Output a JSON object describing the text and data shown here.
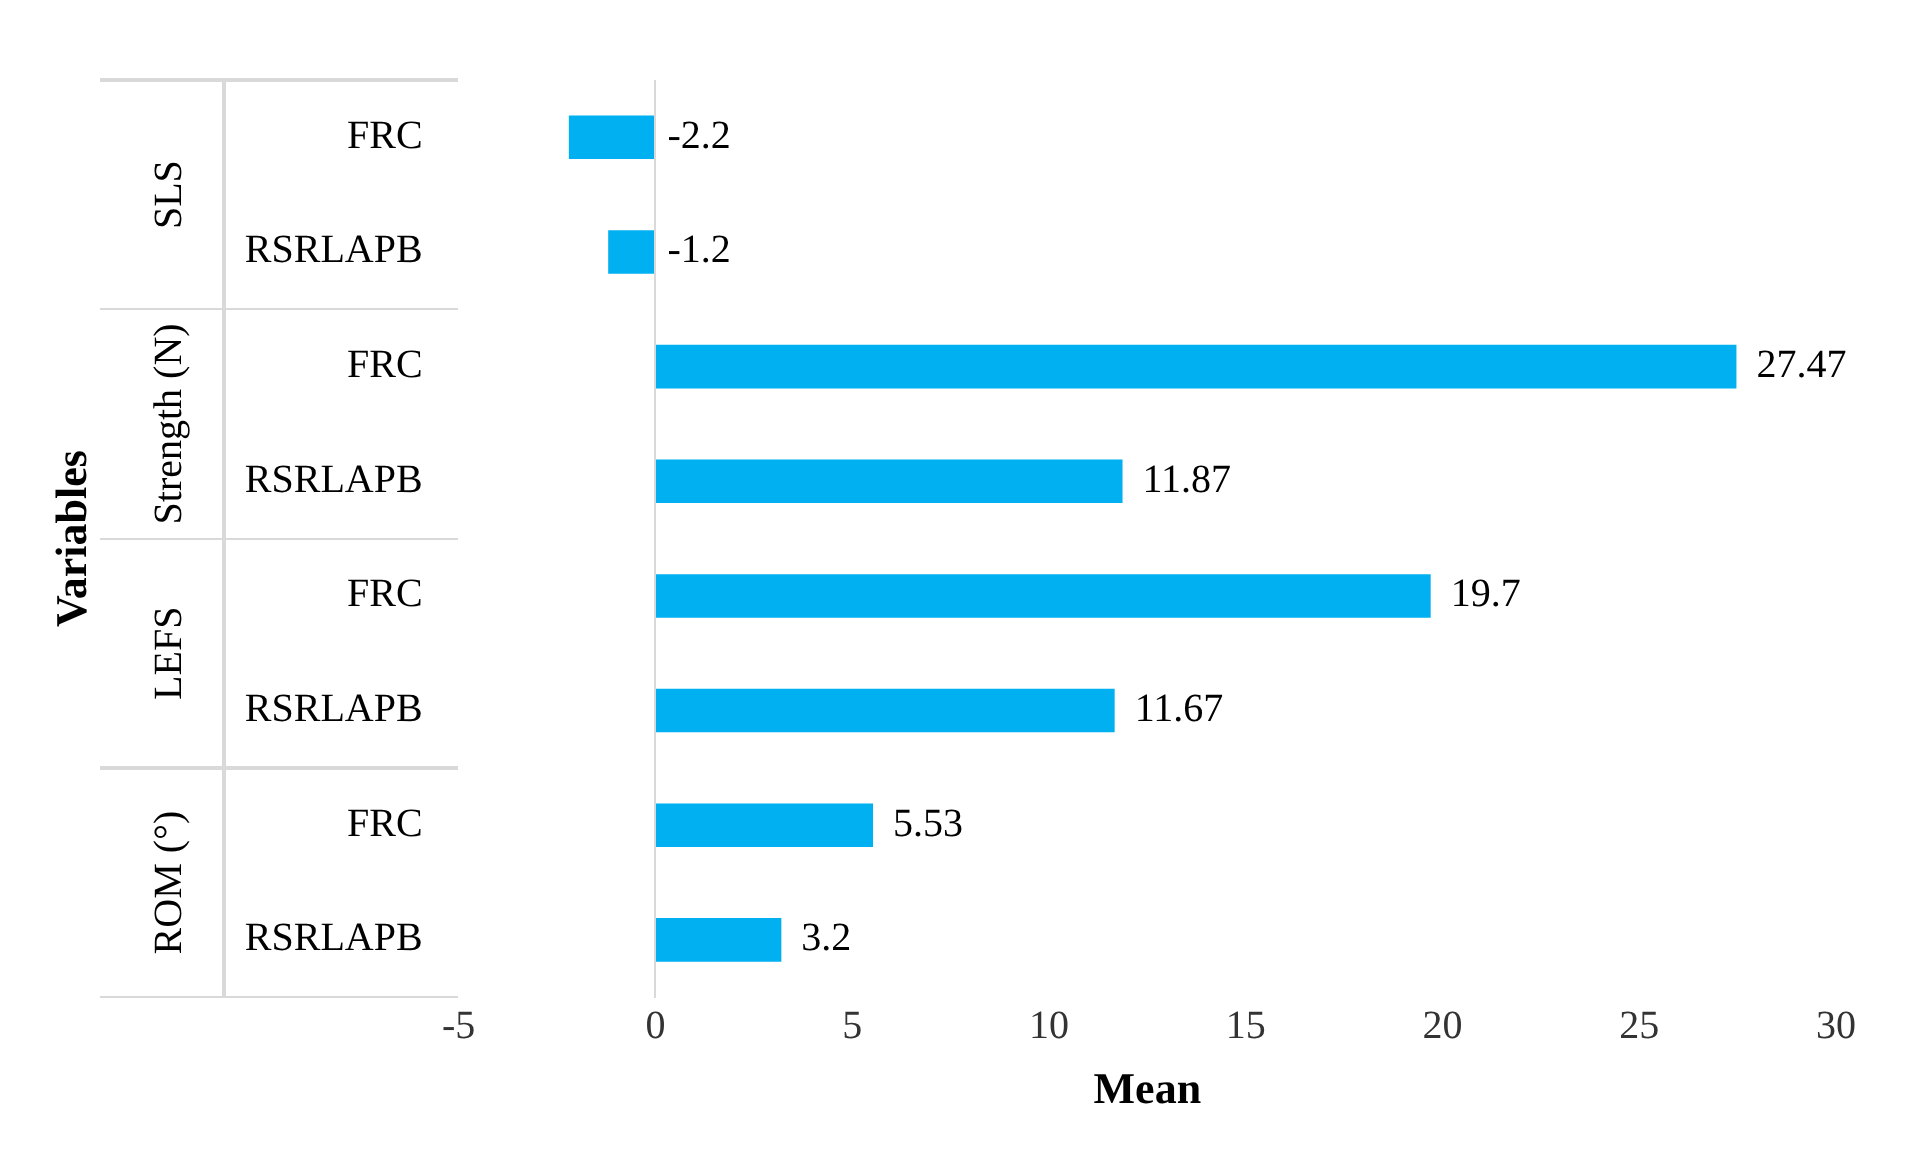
{
  "chart_data": {
    "type": "bar",
    "orientation": "horizontal",
    "xlabel": "Mean",
    "ylabel": "Variables",
    "categories": [
      "FRC",
      "RSRLAPB",
      "FRC",
      "RSRLAPB",
      "FRC",
      "RSRLAPB",
      "FRC",
      "RSRLAPB"
    ],
    "values": [
      -2.2,
      -1.2,
      27.47,
      11.87,
      19.7,
      11.67,
      5.53,
      3.2
    ],
    "color": "#00b0f0",
    "xlim": [
      -5,
      30
    ],
    "xticks": [
      -5,
      0,
      5,
      10,
      15,
      20,
      25,
      30
    ],
    "grid": false,
    "legend": false,
    "data_labels": true,
    "annotations": [
      "SLS",
      "Strength (N)",
      "LEFS",
      "ROM (°)"
    ]
  }
}
